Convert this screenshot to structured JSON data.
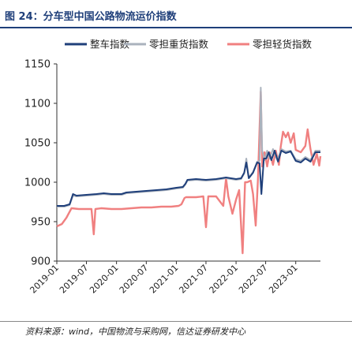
{
  "header": {
    "title": "图 24：分车型中国公路物流运价指数"
  },
  "footer": {
    "source": "资料来源：wind，中国物流与采购网，信达证券研发中心"
  },
  "colors": {
    "series1": "#1f3f7a",
    "series2": "#aab2bd",
    "series3": "#f08080",
    "title": "#1f3f7a"
  },
  "chart_data": {
    "type": "line",
    "title": "",
    "xlabel": "",
    "ylabel": "",
    "ylim": [
      900,
      1150
    ],
    "yticks": [
      "900",
      "950",
      "1000",
      "1050",
      "1100",
      "1150"
    ],
    "xlim": [
      "2019-01",
      "2023-06"
    ],
    "xticks": [
      "2019-01",
      "2019-07",
      "2020-01",
      "2020-07",
      "2021-01",
      "2021-07",
      "2022-01",
      "2022-07",
      "2023-01"
    ],
    "legend_position": "top",
    "grid": false,
    "series": [
      {
        "name": "整车指数",
        "color": "#1f3f7a",
        "points": [
          [
            "2019-01-01",
            970
          ],
          [
            "2019-02-15",
            970
          ],
          [
            "2019-03-20",
            972
          ],
          [
            "2019-04-10",
            985
          ],
          [
            "2019-05-01",
            983
          ],
          [
            "2019-07-01",
            984
          ],
          [
            "2019-09-01",
            985
          ],
          [
            "2019-10-15",
            986
          ],
          [
            "2019-12-01",
            985
          ],
          [
            "2020-02-01",
            985
          ],
          [
            "2020-03-01",
            987
          ],
          [
            "2020-05-01",
            988
          ],
          [
            "2020-07-01",
            989
          ],
          [
            "2020-09-01",
            990
          ],
          [
            "2020-11-01",
            991
          ],
          [
            "2021-01-01",
            993
          ],
          [
            "2021-02-10",
            994
          ],
          [
            "2021-02-25",
            998
          ],
          [
            "2021-03-10",
            1003
          ],
          [
            "2021-05-01",
            1004
          ],
          [
            "2021-07-01",
            1003
          ],
          [
            "2021-09-01",
            1004
          ],
          [
            "2021-11-01",
            1006
          ],
          [
            "2022-01-01",
            1004
          ],
          [
            "2022-02-01",
            1005
          ],
          [
            "2022-02-20",
            1012
          ],
          [
            "2022-03-05",
            1025
          ],
          [
            "2022-03-20",
            1005
          ],
          [
            "2022-04-15",
            1012
          ],
          [
            "2022-05-10",
            1025
          ],
          [
            "2022-05-25",
            1024
          ],
          [
            "2022-06-05",
            985
          ],
          [
            "2022-06-20",
            1030
          ],
          [
            "2022-07-05",
            1030
          ],
          [
            "2022-07-20",
            1038
          ],
          [
            "2022-08-05",
            1028
          ],
          [
            "2022-08-25",
            1040
          ],
          [
            "2022-09-15",
            1026
          ],
          [
            "2022-10-05",
            1040
          ],
          [
            "2022-11-01",
            1037
          ],
          [
            "2022-12-01",
            1039
          ],
          [
            "2023-01-01",
            1027
          ],
          [
            "2023-02-01",
            1025
          ],
          [
            "2023-03-01",
            1030
          ],
          [
            "2023-04-01",
            1026
          ],
          [
            "2023-05-01",
            1038
          ],
          [
            "2023-06-01",
            1038
          ]
        ]
      },
      {
        "name": "零担重货指数",
        "color": "#aab2bd",
        "points": [
          [
            "2019-01-01",
            969
          ],
          [
            "2019-02-15",
            969
          ],
          [
            "2019-03-20",
            971
          ],
          [
            "2019-04-10",
            983
          ],
          [
            "2019-05-01",
            982
          ],
          [
            "2019-07-01",
            983
          ],
          [
            "2019-09-01",
            984
          ],
          [
            "2019-10-15",
            985
          ],
          [
            "2019-12-01",
            984
          ],
          [
            "2020-02-01",
            984
          ],
          [
            "2020-03-01",
            986
          ],
          [
            "2020-05-01",
            987
          ],
          [
            "2020-07-01",
            988
          ],
          [
            "2020-09-01",
            989
          ],
          [
            "2020-11-01",
            990
          ],
          [
            "2021-01-01",
            992
          ],
          [
            "2021-02-10",
            993
          ],
          [
            "2021-02-25",
            997
          ],
          [
            "2021-03-10",
            1002
          ],
          [
            "2021-05-01",
            1003
          ],
          [
            "2021-07-01",
            1002
          ],
          [
            "2021-09-01",
            1003
          ],
          [
            "2021-11-01",
            1005
          ],
          [
            "2022-01-01",
            1003
          ],
          [
            "2022-02-01",
            1004
          ],
          [
            "2022-02-20",
            1011
          ],
          [
            "2022-03-05",
            1030
          ],
          [
            "2022-03-20",
            1006
          ],
          [
            "2022-04-15",
            1013
          ],
          [
            "2022-05-10",
            1026
          ],
          [
            "2022-05-25",
            1027
          ],
          [
            "2022-06-01",
            1120
          ],
          [
            "2022-06-10",
            1040
          ],
          [
            "2022-06-25",
            1028
          ],
          [
            "2022-07-10",
            1040
          ],
          [
            "2022-07-25",
            1030
          ],
          [
            "2022-08-15",
            1042
          ],
          [
            "2022-09-10",
            1028
          ],
          [
            "2022-10-05",
            1042
          ],
          [
            "2022-11-01",
            1039
          ],
          [
            "2022-12-01",
            1040
          ],
          [
            "2023-01-01",
            1029
          ],
          [
            "2023-02-01",
            1027
          ],
          [
            "2023-03-01",
            1032
          ],
          [
            "2023-04-01",
            1028
          ],
          [
            "2023-05-01",
            1040
          ],
          [
            "2023-06-01",
            1040
          ]
        ]
      },
      {
        "name": "零担轻货指数",
        "color": "#f08080",
        "points": [
          [
            "2019-01-01",
            944
          ],
          [
            "2019-02-01",
            947
          ],
          [
            "2019-03-01",
            955
          ],
          [
            "2019-04-01",
            967
          ],
          [
            "2019-05-15",
            966
          ],
          [
            "2019-07-01",
            966
          ],
          [
            "2019-08-01",
            966
          ],
          [
            "2019-08-15",
            934
          ],
          [
            "2019-08-25",
            966
          ],
          [
            "2019-10-01",
            967
          ],
          [
            "2019-12-01",
            966
          ],
          [
            "2020-02-01",
            966
          ],
          [
            "2020-04-01",
            967
          ],
          [
            "2020-06-01",
            968
          ],
          [
            "2020-08-01",
            968
          ],
          [
            "2020-10-01",
            969
          ],
          [
            "2020-12-01",
            969
          ],
          [
            "2021-01-15",
            970
          ],
          [
            "2021-02-01",
            972
          ],
          [
            "2021-02-20",
            980
          ],
          [
            "2021-03-01",
            981
          ],
          [
            "2021-05-01",
            981
          ],
          [
            "2021-06-15",
            982
          ],
          [
            "2021-07-01",
            943
          ],
          [
            "2021-07-15",
            982
          ],
          [
            "2021-09-01",
            982
          ],
          [
            "2021-10-15",
            970
          ],
          [
            "2021-11-01",
            1005
          ],
          [
            "2021-11-15",
            982
          ],
          [
            "2021-12-10",
            960
          ],
          [
            "2022-01-01",
            978
          ],
          [
            "2022-01-20",
            990
          ],
          [
            "2022-02-10",
            910
          ],
          [
            "2022-02-25",
            1000
          ],
          [
            "2022-03-10",
            1000
          ],
          [
            "2022-04-01",
            1002
          ],
          [
            "2022-04-15",
            985
          ],
          [
            "2022-05-01",
            945
          ],
          [
            "2022-05-15",
            1005
          ],
          [
            "2022-06-01",
            1115
          ],
          [
            "2022-06-10",
            1020
          ],
          [
            "2022-06-25",
            1038
          ],
          [
            "2022-07-10",
            1020
          ],
          [
            "2022-07-25",
            1038
          ],
          [
            "2022-08-15",
            1022
          ],
          [
            "2022-09-01",
            1040
          ],
          [
            "2022-09-20",
            1022
          ],
          [
            "2022-10-01",
            1045
          ],
          [
            "2022-10-15",
            1064
          ],
          [
            "2022-11-01",
            1057
          ],
          [
            "2022-11-15",
            1063
          ],
          [
            "2022-12-01",
            1050
          ],
          [
            "2022-12-20",
            1062
          ],
          [
            "2023-01-01",
            1041
          ],
          [
            "2023-02-01",
            1038
          ],
          [
            "2023-03-01",
            1046
          ],
          [
            "2023-03-15",
            1067
          ],
          [
            "2023-04-01",
            1042
          ],
          [
            "2023-04-20",
            1022
          ],
          [
            "2023-05-10",
            1036
          ],
          [
            "2023-05-25",
            1021
          ],
          [
            "2023-06-01",
            1033
          ]
        ]
      }
    ]
  }
}
